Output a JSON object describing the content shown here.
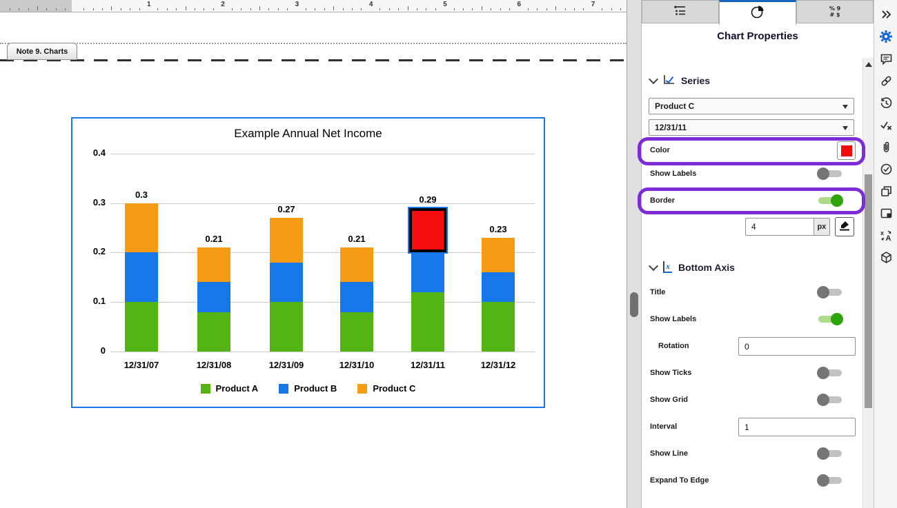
{
  "document": {
    "section_label": "Note 9. Charts",
    "ruler_numbers": [
      "1",
      "2",
      "3",
      "4",
      "5",
      "6",
      "7"
    ]
  },
  "chart_data": {
    "type": "bar",
    "stacked": true,
    "title": "Example Annual Net Income",
    "categories": [
      "12/31/07",
      "12/31/08",
      "12/31/09",
      "12/31/10",
      "12/31/11",
      "12/31/12"
    ],
    "series": [
      {
        "name": "Product A",
        "color": "#54B413",
        "values": [
          0.1,
          0.08,
          0.1,
          0.08,
          0.12,
          0.1
        ]
      },
      {
        "name": "Product B",
        "color": "#1677E8",
        "values": [
          0.1,
          0.06,
          0.08,
          0.06,
          0.08,
          0.06
        ]
      },
      {
        "name": "Product C",
        "color": "#F59B14",
        "values": [
          0.1,
          0.07,
          0.09,
          0.07,
          0.09,
          0.07
        ]
      }
    ],
    "total_labels": [
      "0.3",
      "0.21",
      "0.27",
      "0.21",
      "0.29",
      "0.23"
    ],
    "yticks": [
      0,
      0.1,
      0.2,
      0.3,
      0.4
    ],
    "ytick_labels": [
      "0",
      "0.1",
      "0.2",
      "0.3",
      "0.4"
    ],
    "ylim": [
      0,
      0.4
    ],
    "grid": true,
    "legend_position": "bottom",
    "frame_border_color": "#1778E8",
    "selected_point": {
      "series": "Product C",
      "category": "12/31/11",
      "category_index": 4,
      "fill": "#F70D0D",
      "border_color": "#000000",
      "border_px": 4,
      "selection_color": "#1677E8"
    }
  },
  "panel": {
    "title": "Chart Properties",
    "tabs": {
      "number_format_label": "% 9\n# $"
    },
    "series_section": {
      "header": "Series",
      "series_value": "Product C",
      "point_value": "12/31/11",
      "color_label": "Color",
      "color_value": "#F20D0D",
      "show_labels_label": "Show Labels",
      "show_labels_state": "off",
      "border_label": "Border",
      "border_state": "on",
      "border_width_value": "4",
      "border_width_unit": "px"
    },
    "bottom_axis_section": {
      "header": "Bottom Axis",
      "title_label": "Title",
      "title_state": "off",
      "show_labels_label": "Show Labels",
      "show_labels_state": "on",
      "rotation_label": "Rotation",
      "rotation_value": "0",
      "show_ticks_label": "Show Ticks",
      "show_ticks_state": "off",
      "show_grid_label": "Show Grid",
      "show_grid_state": "off",
      "interval_label": "Interval",
      "interval_value": "1",
      "show_line_label": "Show Line",
      "show_line_state": "off",
      "expand_label": "Expand To Edge",
      "expand_state": "off"
    },
    "highlight_color": "#7E2BD9",
    "toggle_on_color": "#2FA30C",
    "toggle_off_color": "#757575",
    "active_tab_color": "#1565C0"
  }
}
